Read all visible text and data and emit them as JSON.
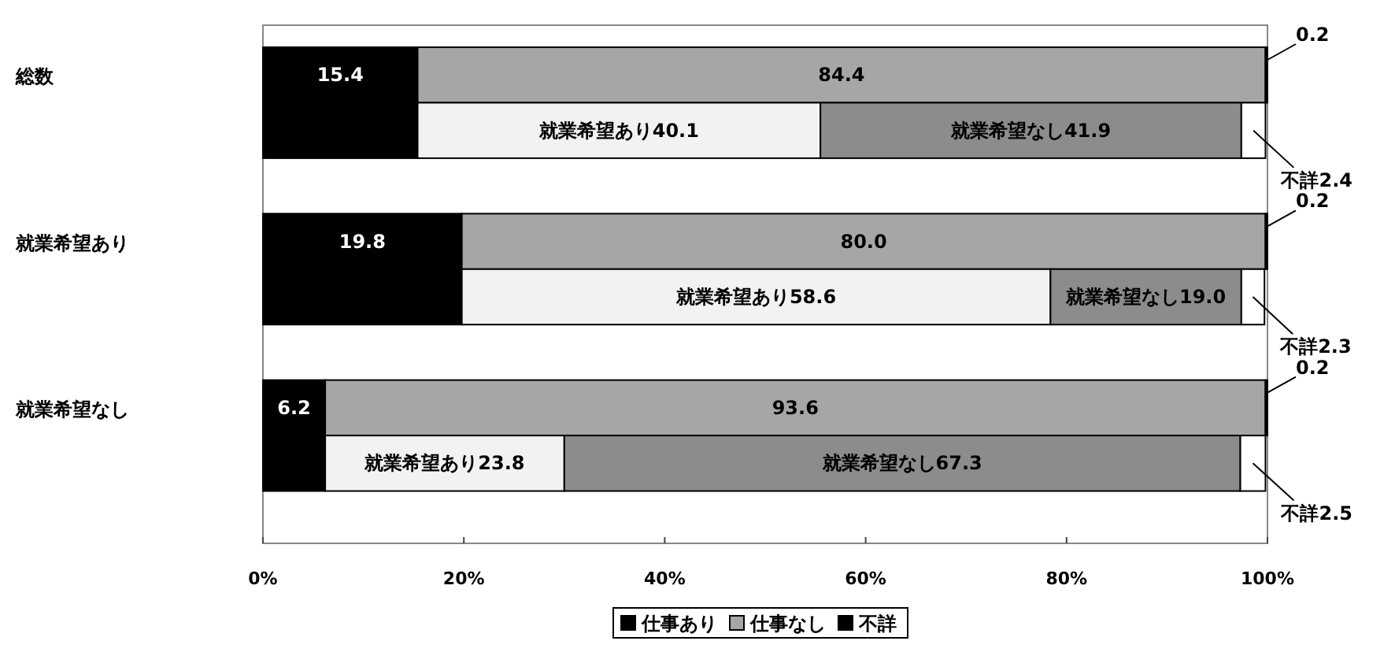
{
  "chart_data": {
    "type": "bar",
    "orientation": "horizontal",
    "stacked": true,
    "categories": [
      "総数",
      null,
      null,
      "就業希望あり",
      null,
      null,
      "就業希望なし",
      null,
      null
    ],
    "series": [
      {
        "name": "仕事あり",
        "color": "#000000",
        "values": [
          15.4,
          15.4,
          null,
          19.8,
          19.8,
          null,
          6.2,
          6.2,
          null
        ],
        "value_labels": [
          "15.4",
          null,
          null,
          "19.8",
          null,
          null,
          "6.2",
          null,
          null
        ]
      },
      {
        "name": "仕事なし",
        "color": "#a6a6a6",
        "values": [
          84.4,
          null,
          null,
          80.0,
          null,
          null,
          93.6,
          null,
          null
        ],
        "value_labels": [
          "84.4",
          null,
          null,
          "80.0",
          null,
          null,
          "93.6",
          null,
          null
        ]
      },
      {
        "name": "不詳",
        "color": "#000000",
        "values": [
          0.2,
          null,
          null,
          0.2,
          null,
          null,
          0.2,
          null,
          null
        ],
        "value_labels": [
          "0.2",
          null,
          null,
          "0.2",
          null,
          null,
          "0.2",
          null,
          null
        ]
      },
      {
        "color": "#f2f2f2",
        "values": [
          null,
          40.1,
          null,
          null,
          58.6,
          null,
          null,
          23.8,
          null
        ],
        "value_labels": [
          null,
          "就業希望あり40.1",
          null,
          null,
          "就業希望あり58.6",
          null,
          null,
          "就業希望あり23.8",
          null
        ]
      },
      {
        "color": "#8c8c8c",
        "values": [
          null,
          41.9,
          null,
          null,
          19.0,
          null,
          null,
          67.3,
          null
        ],
        "value_labels": [
          null,
          "就業希望なし41.9",
          null,
          null,
          "就業希望なし19.0",
          null,
          null,
          "就業希望なし67.3",
          null
        ]
      },
      {
        "color": "#ffffff",
        "values": [
          null,
          2.4,
          null,
          null,
          2.3,
          null,
          null,
          2.5,
          null
        ],
        "value_labels": [
          null,
          "不詳2.4",
          null,
          null,
          "不詳2.3",
          null,
          null,
          "不詳2.5",
          null
        ]
      }
    ],
    "xlim": [
      0,
      100
    ],
    "xticks": [
      {
        "value": 0,
        "label": "0%"
      },
      {
        "value": 20,
        "label": "20%"
      },
      {
        "value": 40,
        "label": "40%"
      },
      {
        "value": 60,
        "label": "60%"
      },
      {
        "value": 80,
        "label": "80%"
      },
      {
        "value": 100,
        "label": "100%"
      }
    ],
    "legend": "bottom"
  }
}
